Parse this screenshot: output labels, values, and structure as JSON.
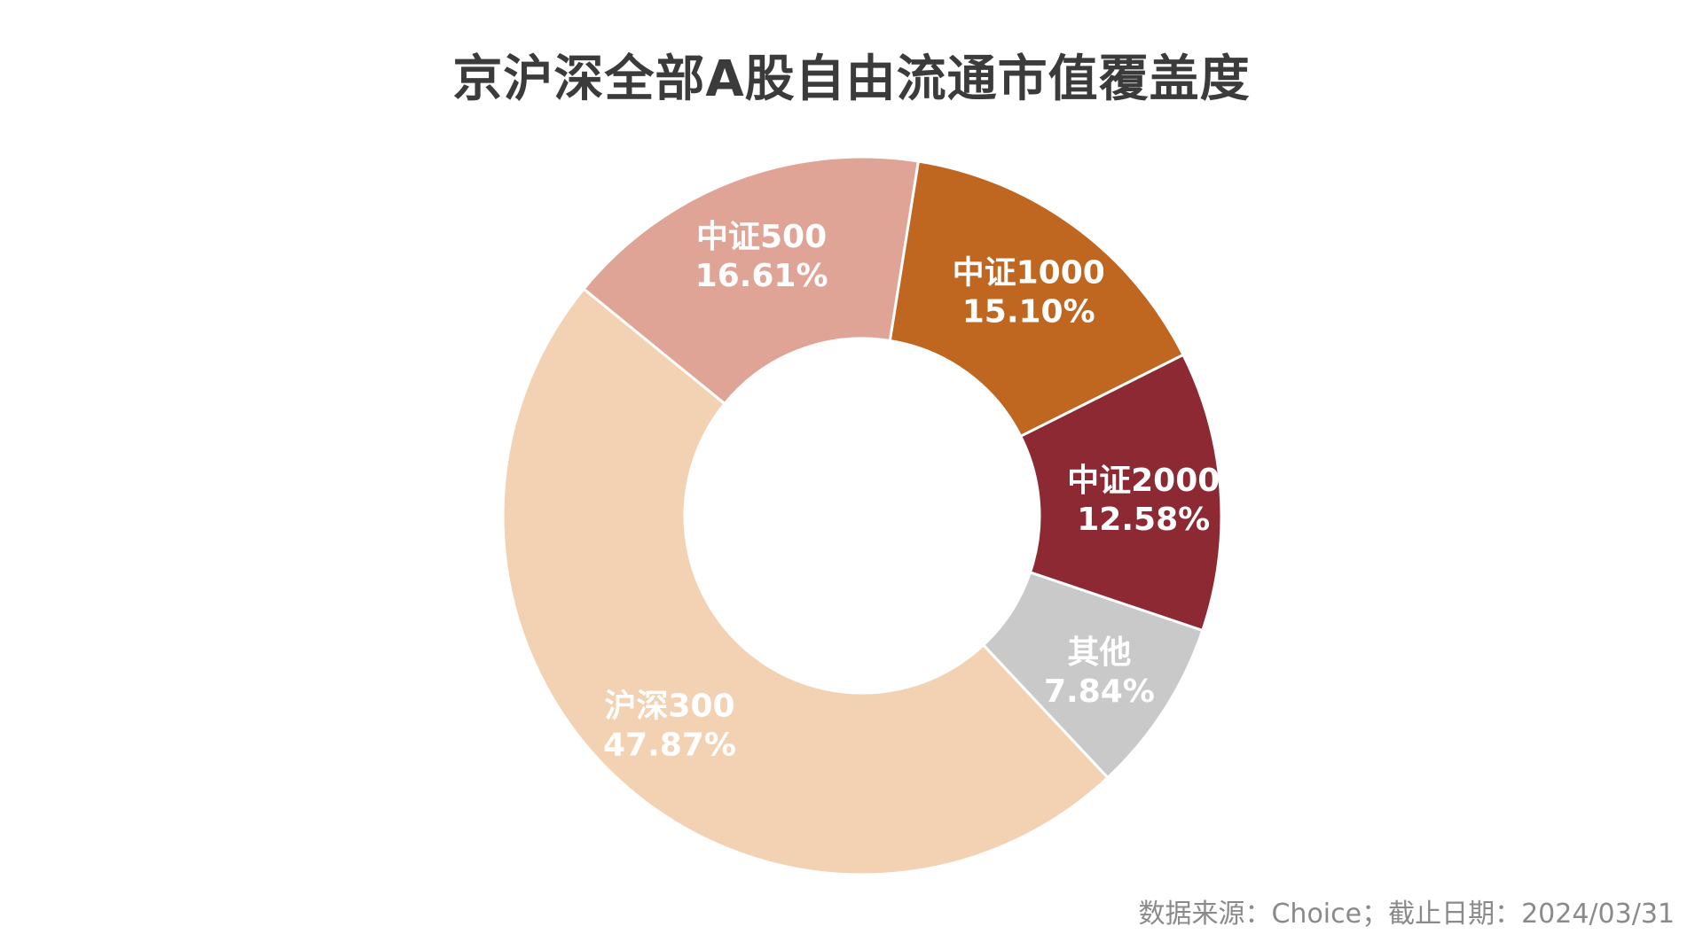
{
  "chart_data": {
    "type": "pie",
    "title": "京沪深全部A股自由流通市值覆盖度",
    "hole": true,
    "slices": [
      {
        "name": "中证1000",
        "value": 15.1,
        "label": "15.10%",
        "color": "#BF6621"
      },
      {
        "name": "中证2000",
        "value": 12.58,
        "label": "12.58%",
        "color": "#8C2932"
      },
      {
        "name": "其他",
        "value": 7.84,
        "label": "7.84%",
        "color": "#C9C9C9"
      },
      {
        "name": "沪深300",
        "value": 47.87,
        "label": "47.87%",
        "color": "#F3D2B3"
      },
      {
        "name": "中证500",
        "value": 16.61,
        "label": "16.61%",
        "color": "#E0A497"
      }
    ]
  },
  "footer": {
    "source_note": "数据来源：Choice；截止日期：2024/03/31"
  }
}
